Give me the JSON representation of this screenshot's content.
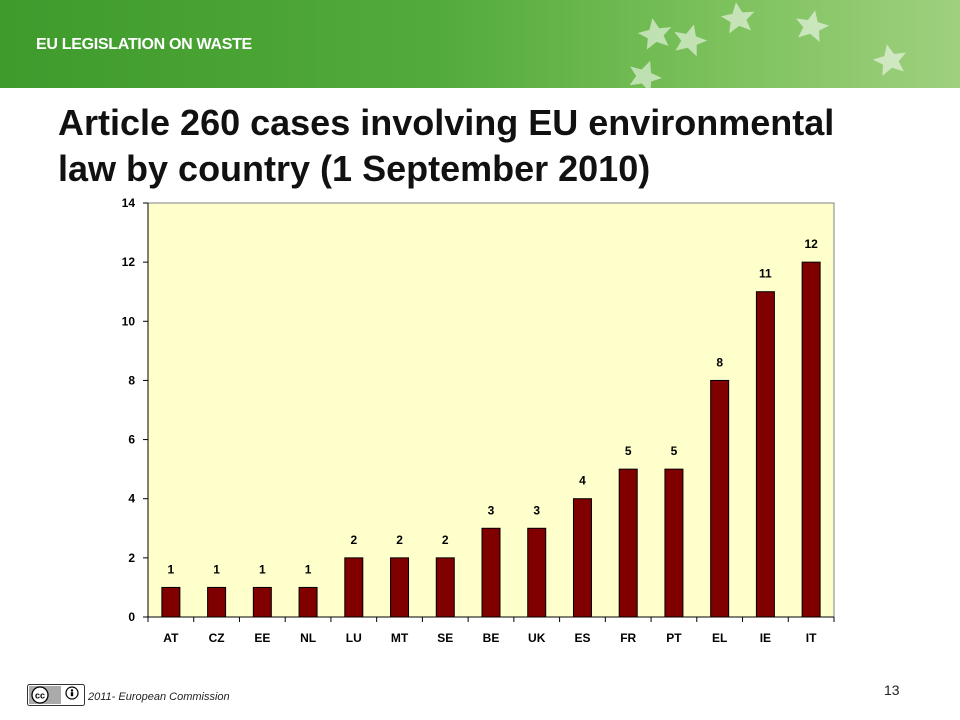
{
  "header": {
    "banner_title": "EU LEGISLATION ON WASTE",
    "banner_color": "#4ea63a"
  },
  "slide": {
    "title_line1": "Article 260 cases involving EU environmental",
    "title_line2": "law by country (1 September 2010)"
  },
  "footer": {
    "license_icon": "creative-commons-by-icon",
    "copyright": "2011- European  Commission",
    "page_number": "13"
  },
  "colors": {
    "bar_fill": "#800000",
    "plot_background": "#ffffcc"
  },
  "chart_data": {
    "type": "bar",
    "categories": [
      "AT",
      "CZ",
      "EE",
      "NL",
      "LU",
      "MT",
      "SE",
      "BE",
      "UK",
      "ES",
      "FR",
      "PT",
      "EL",
      "IE",
      "IT"
    ],
    "values": [
      1,
      1,
      1,
      1,
      2,
      2,
      2,
      3,
      3,
      4,
      5,
      5,
      8,
      11,
      12
    ],
    "data_labels": [
      "1",
      "1",
      "1",
      "1",
      "2",
      "2",
      "2",
      "3",
      "3",
      "4",
      "5",
      "5",
      "8",
      "11",
      "12"
    ],
    "y_ticks": [
      "0",
      "2",
      "4",
      "6",
      "8",
      "10",
      "12",
      "14"
    ],
    "ylim": [
      0,
      14
    ],
    "grid": false,
    "legend": "none"
  }
}
